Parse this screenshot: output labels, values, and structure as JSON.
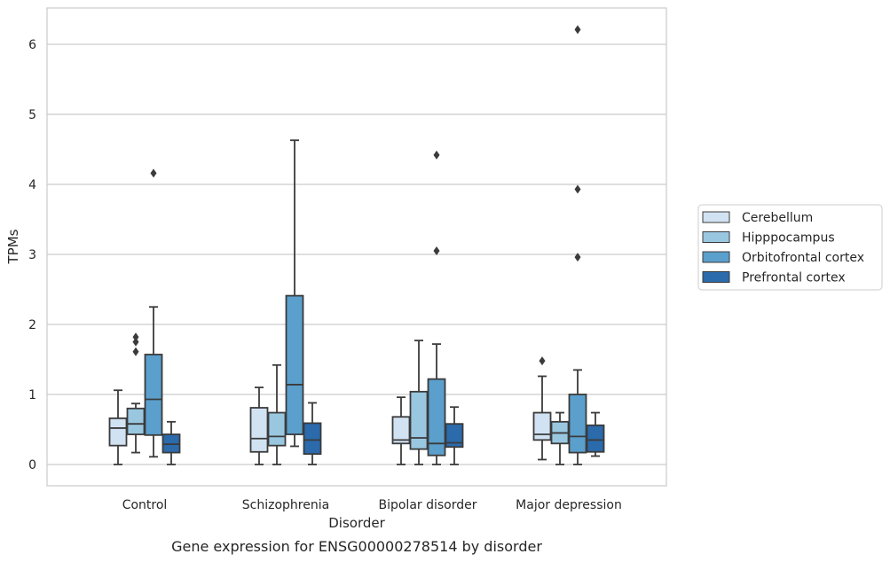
{
  "chart_data": {
    "type": "box",
    "caption": "Gene expression for ENSG00000278514 by disorder",
    "xlabel": "Disorder",
    "ylabel": "TPMs",
    "ylim": [
      -0.3,
      6.52
    ],
    "yticks": [
      0,
      1,
      2,
      3,
      4,
      5,
      6
    ],
    "grid": "horizontal",
    "legend_position": "right",
    "categories": [
      "Control",
      "Schizophrenia",
      "Bipolar disorder",
      "Major depression"
    ],
    "series": [
      {
        "name": "Cerebellum",
        "color": "#d1e2f2",
        "boxes": [
          {
            "whislo": 0.0,
            "q1": 0.27,
            "med": 0.52,
            "q3": 0.66,
            "whishi": 1.06,
            "fliers": []
          },
          {
            "whislo": 0.0,
            "q1": 0.18,
            "med": 0.37,
            "q3": 0.81,
            "whishi": 1.1,
            "fliers": []
          },
          {
            "whislo": 0.0,
            "q1": 0.3,
            "med": 0.35,
            "q3": 0.68,
            "whishi": 0.96,
            "fliers": []
          },
          {
            "whislo": 0.07,
            "q1": 0.35,
            "med": 0.43,
            "q3": 0.74,
            "whishi": 1.26,
            "fliers": [
              1.48
            ]
          }
        ]
      },
      {
        "name": "Hipppocampus",
        "color": "#9ac7e0",
        "boxes": [
          {
            "whislo": 0.17,
            "q1": 0.43,
            "med": 0.58,
            "q3": 0.8,
            "whishi": 0.87,
            "fliers": [
              1.61,
              1.75,
              1.82
            ]
          },
          {
            "whislo": 0.0,
            "q1": 0.27,
            "med": 0.4,
            "q3": 0.74,
            "whishi": 1.42,
            "fliers": []
          },
          {
            "whislo": 0.0,
            "q1": 0.22,
            "med": 0.38,
            "q3": 1.04,
            "whishi": 1.77,
            "fliers": []
          },
          {
            "whislo": 0.0,
            "q1": 0.3,
            "med": 0.45,
            "q3": 0.61,
            "whishi": 0.74,
            "fliers": []
          }
        ]
      },
      {
        "name": "Orbitofrontal cortex",
        "color": "#5b9fcc",
        "boxes": [
          {
            "whislo": 0.11,
            "q1": 0.42,
            "med": 0.93,
            "q3": 1.57,
            "whishi": 2.25,
            "fliers": [
              4.16
            ]
          },
          {
            "whislo": 0.26,
            "q1": 0.43,
            "med": 1.14,
            "q3": 2.41,
            "whishi": 4.63,
            "fliers": []
          },
          {
            "whislo": 0.0,
            "q1": 0.13,
            "med": 0.3,
            "q3": 1.22,
            "whishi": 1.72,
            "fliers": [
              3.05,
              4.42
            ]
          },
          {
            "whislo": 0.0,
            "q1": 0.17,
            "med": 0.4,
            "q3": 1.0,
            "whishi": 1.35,
            "fliers": [
              2.96,
              3.93,
              6.21
            ]
          }
        ]
      },
      {
        "name": "Prefrontal cortex",
        "color": "#2b6aab",
        "boxes": [
          {
            "whislo": 0.0,
            "q1": 0.17,
            "med": 0.29,
            "q3": 0.43,
            "whishi": 0.61,
            "fliers": []
          },
          {
            "whislo": 0.0,
            "q1": 0.15,
            "med": 0.35,
            "q3": 0.59,
            "whishi": 0.88,
            "fliers": []
          },
          {
            "whislo": 0.0,
            "q1": 0.25,
            "med": 0.31,
            "q3": 0.58,
            "whishi": 0.82,
            "fliers": []
          },
          {
            "whislo": 0.12,
            "q1": 0.18,
            "med": 0.35,
            "q3": 0.56,
            "whishi": 0.74,
            "fliers": []
          }
        ]
      }
    ]
  }
}
